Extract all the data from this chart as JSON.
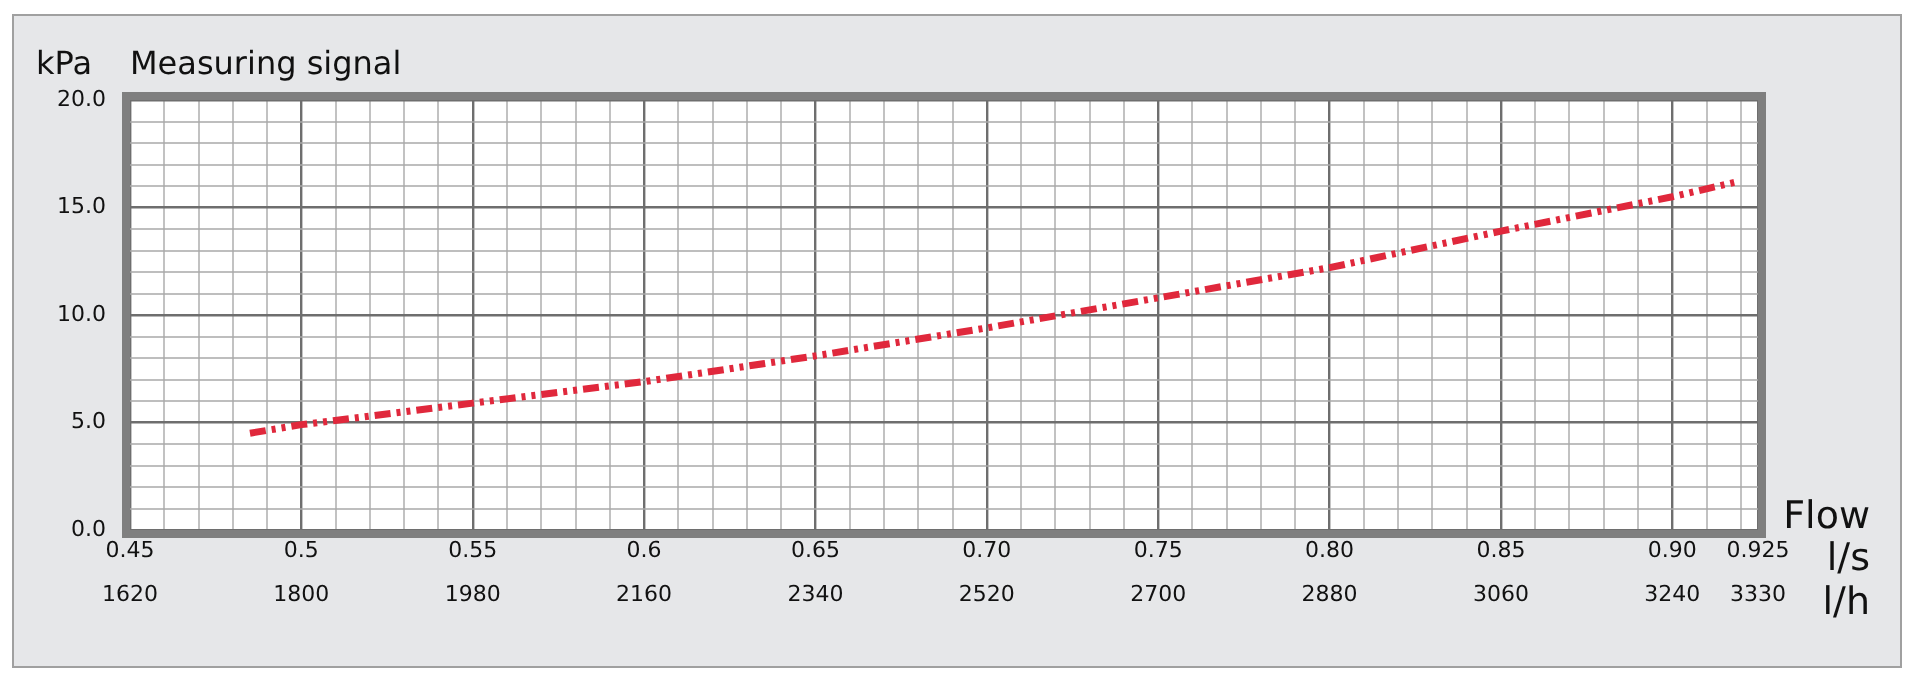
{
  "chart_data": {
    "type": "line",
    "title": "Measuring signal",
    "ylabel": "kPa",
    "xlabel": "l/s",
    "x2label": "l/h",
    "annotations": [
      "Flow"
    ],
    "x": [
      0.485,
      0.5,
      0.55,
      0.6,
      0.65,
      0.7,
      0.75,
      0.8,
      0.85,
      0.9,
      0.919
    ],
    "series": [
      {
        "color": "#e0283c",
        "values": [
          4.5,
          4.9,
          5.9,
          6.9,
          8.1,
          9.4,
          10.8,
          12.2,
          13.9,
          15.5,
          16.2
        ]
      }
    ],
    "xlim": [
      0.45,
      0.925
    ],
    "xticks": [
      {
        "value": 0.45,
        "label": "0.45"
      },
      {
        "value": 0.46,
        "label": null
      },
      {
        "value": 0.47,
        "label": null
      },
      {
        "value": 0.48,
        "label": null
      },
      {
        "value": 0.49,
        "label": null
      },
      {
        "value": 0.5,
        "label": "0.5"
      },
      {
        "value": 0.51,
        "label": null
      },
      {
        "value": 0.52,
        "label": null
      },
      {
        "value": 0.53,
        "label": null
      },
      {
        "value": 0.54,
        "label": null
      },
      {
        "value": 0.55,
        "label": "0.55"
      },
      {
        "value": 0.56,
        "label": null
      },
      {
        "value": 0.57,
        "label": null
      },
      {
        "value": 0.58,
        "label": null
      },
      {
        "value": 0.59,
        "label": null
      },
      {
        "value": 0.6,
        "label": "0.6"
      },
      {
        "value": 0.61,
        "label": null
      },
      {
        "value": 0.62,
        "label": null
      },
      {
        "value": 0.63,
        "label": null
      },
      {
        "value": 0.64,
        "label": null
      },
      {
        "value": 0.65,
        "label": "0.65"
      },
      {
        "value": 0.66,
        "label": null
      },
      {
        "value": 0.67,
        "label": null
      },
      {
        "value": 0.68,
        "label": null
      },
      {
        "value": 0.69,
        "label": null
      },
      {
        "value": 0.7,
        "label": "0.70"
      },
      {
        "value": 0.71,
        "label": null
      },
      {
        "value": 0.72,
        "label": null
      },
      {
        "value": 0.73,
        "label": null
      },
      {
        "value": 0.74,
        "label": null
      },
      {
        "value": 0.75,
        "label": "0.75"
      },
      {
        "value": 0.76,
        "label": null
      },
      {
        "value": 0.77,
        "label": null
      },
      {
        "value": 0.78,
        "label": null
      },
      {
        "value": 0.79,
        "label": null
      },
      {
        "value": 0.8,
        "label": "0.80"
      },
      {
        "value": 0.81,
        "label": null
      },
      {
        "value": 0.82,
        "label": null
      },
      {
        "value": 0.83,
        "label": null
      },
      {
        "value": 0.84,
        "label": null
      },
      {
        "value": 0.85,
        "label": "0.85"
      },
      {
        "value": 0.86,
        "label": null
      },
      {
        "value": 0.87,
        "label": null
      },
      {
        "value": 0.88,
        "label": null
      },
      {
        "value": 0.89,
        "label": null
      },
      {
        "value": 0.9,
        "label": "0.90"
      },
      {
        "value": 0.91,
        "label": null
      },
      {
        "value": 0.92,
        "label": null
      },
      0.925
    ],
    "x2lim": [
      1620,
      3330
    ],
    "x2ticks": [
      1620,
      1800,
      1980,
      2160,
      2340,
      2520,
      2700,
      2880,
      3060,
      3240,
      3330
    ],
    "ylim": [
      0,
      20
    ],
    "yticks": [
      {
        "value": 0,
        "label": "0.0"
      },
      {
        "value": 1,
        "label": null
      },
      {
        "value": 2,
        "label": null
      },
      {
        "value": 3,
        "label": null
      },
      {
        "value": 4,
        "label": null
      },
      {
        "value": 5,
        "label": "5.0"
      },
      {
        "value": 6,
        "label": null
      },
      {
        "value": 7,
        "label": null
      },
      {
        "value": 8,
        "label": null
      },
      {
        "value": 9,
        "label": null
      },
      {
        "value": 10,
        "label": "10.0"
      },
      {
        "value": 11,
        "label": null
      },
      {
        "value": 12,
        "label": null
      },
      {
        "value": 13,
        "label": null
      },
      {
        "value": 14,
        "label": null
      },
      {
        "value": 15,
        "label": "15.0"
      },
      {
        "value": 16,
        "label": null
      },
      {
        "value": 17,
        "label": null
      },
      {
        "value": 18,
        "label": null
      },
      {
        "value": 19,
        "label": null
      },
      {
        "value": 20,
        "label": "20.0"
      }
    ],
    "grid": true,
    "legend": false,
    "marker": "none",
    "line_style": "dashed"
  }
}
